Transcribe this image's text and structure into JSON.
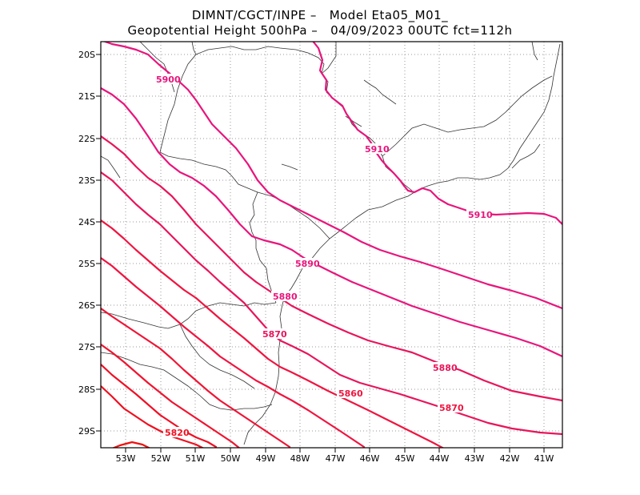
{
  "header": {
    "line1": "DIMNT/CGCT/INPE –   Model Eta05_M01_",
    "line2": "Geopotential Height 500hPa –   04/09/2023 00UTC fct=112h"
  },
  "axes": {
    "lat_labels": [
      "20S",
      "21S",
      "22S",
      "23S",
      "24S",
      "25S",
      "26S",
      "27S",
      "28S",
      "29S"
    ],
    "lon_labels": [
      "53W",
      "52W",
      "51W",
      "50W",
      "49W",
      "48W",
      "47W",
      "46W",
      "45W",
      "44W",
      "43W",
      "42W",
      "41W"
    ]
  },
  "contour_labels": [
    {
      "text": "5900",
      "color": "#e8157c"
    },
    {
      "text": "5910",
      "color": "#e8157c"
    },
    {
      "text": "5910",
      "color": "#e8157c"
    },
    {
      "text": "5890",
      "color": "#e8157c"
    },
    {
      "text": "5880",
      "color": "#e8157c"
    },
    {
      "text": "5870",
      "color": "#e8155a"
    },
    {
      "text": "5880",
      "color": "#e8155a"
    },
    {
      "text": "5860",
      "color": "#ef1540"
    },
    {
      "text": "5870",
      "color": "#ef1540"
    },
    {
      "text": "5820",
      "color": "#ef1020"
    }
  ]
}
